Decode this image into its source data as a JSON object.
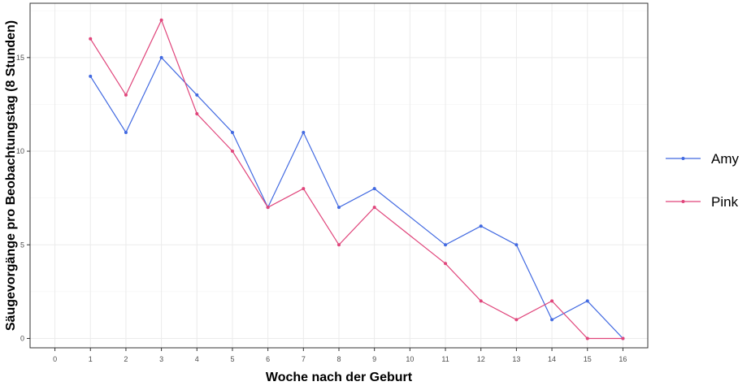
{
  "chart_data": {
    "type": "line",
    "xlabel": "Woche nach der Geburt",
    "ylabel": "Säugevorgänge pro Beobachtungstag (8 Stunden)",
    "x_ticks": [
      0,
      1,
      2,
      3,
      4,
      5,
      6,
      7,
      8,
      9,
      10,
      11,
      12,
      13,
      14,
      15,
      16
    ],
    "y_ticks": [
      0,
      5,
      10,
      15
    ],
    "xlim": [
      -0.7,
      16.7
    ],
    "ylim": [
      -0.5,
      17.9
    ],
    "grid": true,
    "legend_position": "right",
    "series": [
      {
        "name": "Amy",
        "color": "#4169E1",
        "x": [
          1,
          2,
          3,
          4,
          5,
          6,
          7,
          8,
          9,
          11,
          12,
          13,
          14,
          15,
          16
        ],
        "values": [
          14,
          11,
          15,
          13,
          11,
          7,
          11,
          7,
          8,
          5,
          6,
          5,
          1,
          2,
          0
        ]
      },
      {
        "name": "Pink",
        "color": "#E0457B",
        "x": [
          1,
          2,
          3,
          4,
          5,
          6,
          7,
          8,
          9,
          11,
          12,
          13,
          14,
          15,
          16
        ],
        "values": [
          16,
          13,
          17,
          12,
          10,
          7,
          8,
          5,
          7,
          4,
          2,
          1,
          2,
          0,
          0
        ]
      }
    ]
  }
}
